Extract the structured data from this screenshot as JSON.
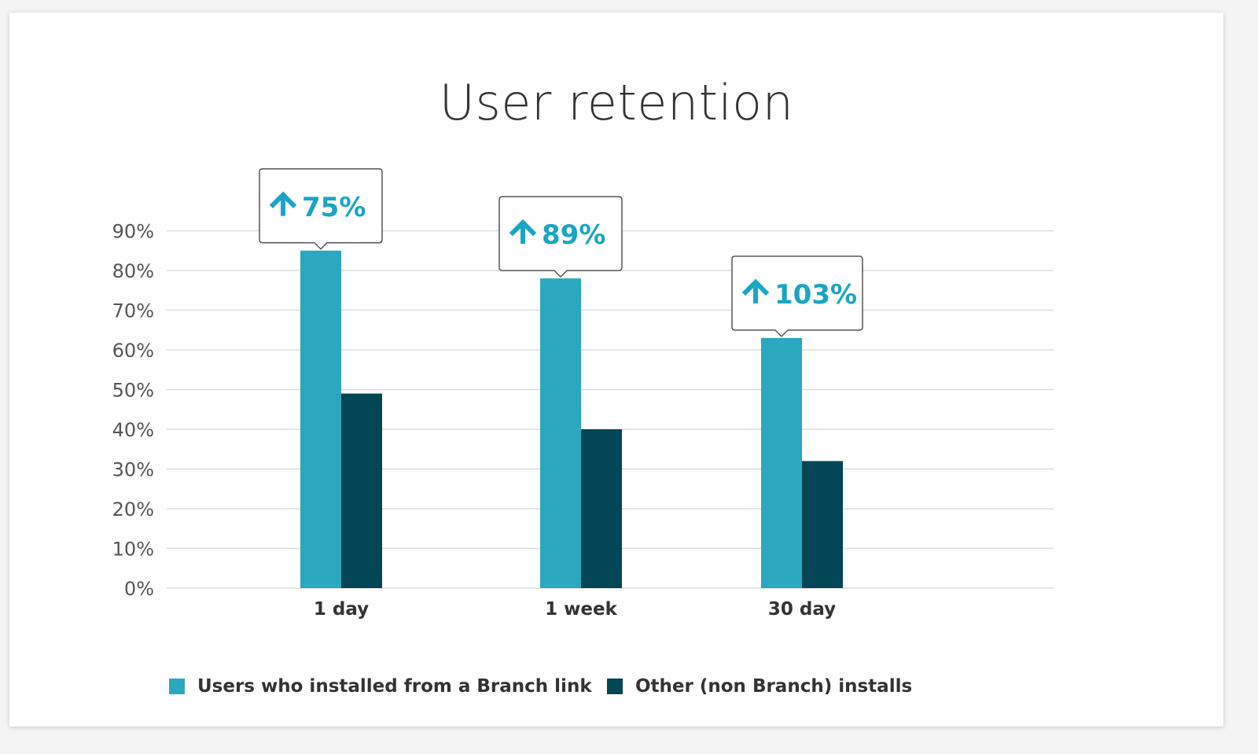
{
  "title": "User retention",
  "colors": {
    "branch": "#2aa8c0",
    "other": "#034655",
    "callout_text": "#1aa5c4",
    "grid": "#dddddd",
    "axis_text": "#555555"
  },
  "legend": {
    "branch_label": "Users who installed from a Branch link",
    "other_label": "Other (non Branch) installs"
  },
  "chart_data": {
    "type": "bar",
    "title": "User retention",
    "categories": [
      "1 day",
      "1 week",
      "30 day"
    ],
    "series": [
      {
        "name": "Users who installed from a Branch link",
        "values": [
          85,
          78,
          63
        ]
      },
      {
        "name": "Other (non Branch) installs",
        "values": [
          49,
          40,
          32
        ]
      }
    ],
    "callouts": [
      "75%",
      "89%",
      "103%"
    ],
    "callout_icon": "arrow-up-icon",
    "yticks": [
      {
        "value": 0,
        "label": "0%"
      },
      {
        "value": 10,
        "label": "10%"
      },
      {
        "value": 20,
        "label": "20%"
      },
      {
        "value": 30,
        "label": "30%"
      },
      {
        "value": 40,
        "label": "40%"
      },
      {
        "value": 50,
        "label": "50%"
      },
      {
        "value": 60,
        "label": "60%"
      },
      {
        "value": 70,
        "label": "70%"
      },
      {
        "value": 80,
        "label": "80%"
      },
      {
        "value": 90,
        "label": "90%"
      }
    ],
    "xlabel": "",
    "ylabel": "",
    "grid": true,
    "legend_position": "bottom"
  }
}
